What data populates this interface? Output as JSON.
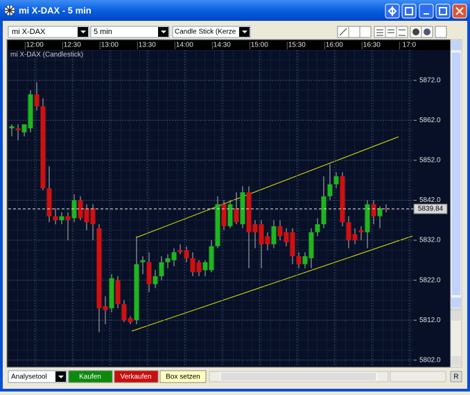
{
  "window": {
    "title": "mi X-DAX - 5 min"
  },
  "toolbar": {
    "instrument": "mi X-DAX",
    "interval": "5 min",
    "chart_style": "Candle Stick (Kerze"
  },
  "chart": {
    "type": "candlestick",
    "label": "mi X-DAX (Candlestick)",
    "xticks": [
      "12:00",
      "12:30",
      "13:00",
      "13:30",
      "14:00",
      "14:30",
      "15:00",
      "15:30",
      "16:00",
      "16:30",
      "17:0"
    ],
    "ylim": [
      5800.4,
      5879.6
    ],
    "yticks": [
      {
        "value": 5802,
        "label": "5802.0"
      },
      {
        "value": 5812,
        "label": "5812.0"
      },
      {
        "value": 5822,
        "label": "5822.0"
      },
      {
        "value": 5832,
        "label": "5832.0"
      },
      {
        "value": 5842,
        "label": "5842.0"
      },
      {
        "value": 5852,
        "label": "5852.0"
      },
      {
        "value": 5862,
        "label": "5862.0"
      },
      {
        "value": 5872,
        "label": "5872.0"
      }
    ],
    "grid": true,
    "up_color": "#1fb51f",
    "down_color": "#d01010",
    "open": [
      5860,
      5860,
      5859,
      5860,
      5868.5,
      5865.5,
      5845,
      5838,
      5837,
      5838,
      5837.5,
      5842,
      5840,
      5840,
      5835,
      5815.5,
      5815,
      5822,
      5816,
      5812.5,
      5812,
      5826.5,
      5826.5,
      5821,
      5823,
      5826.5,
      5827,
      5829.5,
      5829.5,
      5827.5,
      5826.5,
      5824.5,
      5824.5,
      5830.5,
      5841,
      5835.5,
      5840,
      5836,
      5844,
      5836,
      5836,
      5833,
      5831,
      5835.5,
      5834,
      5834,
      5828,
      5826,
      5827.5,
      5834,
      5836,
      5843,
      5846,
      5848,
      5836.5,
      5833.5,
      5834.5,
      5834,
      5841,
      5838,
      5840
    ],
    "high": [
      5861,
      5861,
      5861,
      5869.5,
      5871.5,
      5867.5,
      5850.5,
      5840,
      5839,
      5839,
      5843.5,
      5843,
      5841,
      5841,
      5836,
      5818,
      5823.5,
      5823,
      5817,
      5813,
      5833,
      5828,
      5829,
      5824.5,
      5828,
      5828.5,
      5830,
      5831,
      5830.5,
      5829,
      5827,
      5827,
      5832,
      5843,
      5842,
      5842,
      5844,
      5845.5,
      5845.5,
      5837,
      5837,
      5834,
      5837,
      5837,
      5835,
      5835,
      5829,
      5829,
      5835,
      5837.5,
      5848,
      5851,
      5849,
      5849,
      5838,
      5835,
      5835.5,
      5842,
      5842,
      5840.5,
      5841
    ],
    "low": [
      5858,
      5857,
      5858,
      5859,
      5864.5,
      5844.5,
      5836.5,
      5836,
      5836,
      5832,
      5836.5,
      5837,
      5834.5,
      5832,
      5809,
      5811,
      5814,
      5815,
      5811.5,
      5811,
      5811,
      5823.5,
      5819,
      5820,
      5822,
      5825,
      5825.5,
      5828.5,
      5826.5,
      5823,
      5823,
      5823,
      5824,
      5830,
      5834.5,
      5835,
      5836,
      5835,
      5825,
      5830,
      5825,
      5829.5,
      5830,
      5832,
      5830.5,
      5826,
      5825,
      5825,
      5825,
      5833,
      5835,
      5842,
      5845,
      5835.5,
      5830,
      5831,
      5832,
      5830,
      5836,
      5835,
      5839
    ],
    "close": [
      5860.5,
      5859.5,
      5861,
      5868.5,
      5865.5,
      5845,
      5838,
      5837,
      5838,
      5837,
      5842,
      5837.5,
      5836.5,
      5836,
      5815,
      5814.5,
      5822.5,
      5816,
      5812,
      5811.5,
      5826,
      5827,
      5821,
      5823,
      5826.5,
      5827.5,
      5829,
      5829,
      5827.5,
      5824,
      5824,
      5826.5,
      5830.5,
      5841,
      5835.5,
      5841,
      5836.5,
      5844,
      5834,
      5834,
      5831,
      5831,
      5835.5,
      5833,
      5831.5,
      5828,
      5826,
      5828,
      5834,
      5836,
      5843,
      5846,
      5848,
      5836.5,
      5832,
      5832,
      5834,
      5841,
      5838,
      5840,
      5839.84
    ],
    "last_price": 5839.84
  },
  "bottom_bar": {
    "tool": "Analysetool",
    "buy": "Kaufen",
    "sell": "Verkaufen",
    "box": "Box setzen",
    "right_button": "R"
  }
}
